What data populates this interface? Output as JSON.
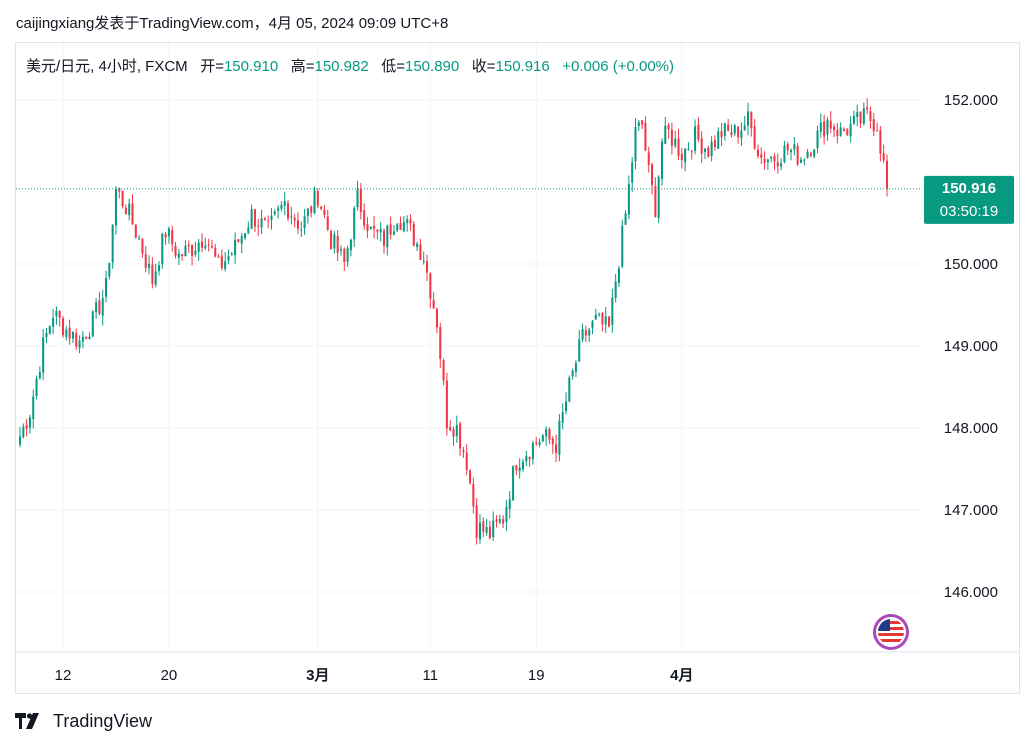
{
  "header": {
    "user": "caijingxiang",
    "published_text": "发表于TradingView.com，",
    "timestamp": "4月 05, 2024 09:09 UTC+8"
  },
  "legend": {
    "symbol": "美元/日元, 4小时, FXCM",
    "open_label": "开=",
    "open_value": "150.910",
    "high_label": "高=",
    "high_value": "150.982",
    "low_label": "低=",
    "low_value": "150.890",
    "close_label": "收=",
    "close_value": "150.916",
    "change": "+0.006 (+0.00%)"
  },
  "price_tag": {
    "price": "150.916",
    "countdown": "03:50:19"
  },
  "footer": {
    "brand": "TradingView"
  },
  "colors": {
    "up": "#089981",
    "down": "#f23645",
    "grid": "#f0f3fa",
    "text": "#131722"
  },
  "icons": {
    "flag": "us-flag-icon",
    "logo": "tradingview-logo-icon"
  },
  "chart_data": {
    "type": "candlestick",
    "symbol": "USD/JPY",
    "timeframe": "4h",
    "y_ticks": [
      "152.000",
      "150.000",
      "149.000",
      "148.000",
      "147.000",
      "146.000"
    ],
    "x_ticks": [
      "12",
      "20",
      "3月",
      "11",
      "19",
      "4月"
    ],
    "ylim": [
      145.3,
      152.45
    ],
    "current_price": 150.916,
    "price_path": [
      [
        0,
        147.9
      ],
      [
        3,
        148.2
      ],
      [
        7,
        149.0
      ],
      [
        10,
        149.4
      ],
      [
        14,
        149.2
      ],
      [
        18,
        149.05
      ],
      [
        22,
        149.3
      ],
      [
        26,
        149.7
      ],
      [
        29,
        150.9
      ],
      [
        32,
        150.7
      ],
      [
        36,
        150.3
      ],
      [
        40,
        149.8
      ],
      [
        44,
        150.4
      ],
      [
        48,
        150.1
      ],
      [
        52,
        150.2
      ],
      [
        56,
        150.35
      ],
      [
        60,
        149.95
      ],
      [
        65,
        150.2
      ],
      [
        70,
        150.6
      ],
      [
        75,
        150.4
      ],
      [
        80,
        150.75
      ],
      [
        85,
        150.45
      ],
      [
        90,
        150.85
      ],
      [
        94,
        150.3
      ],
      [
        98,
        150.0
      ],
      [
        102,
        150.8
      ],
      [
        106,
        150.4
      ],
      [
        110,
        150.3
      ],
      [
        114,
        150.6
      ],
      [
        118,
        150.4
      ],
      [
        122,
        150.1
      ],
      [
        126,
        149.3
      ],
      [
        129,
        148.1
      ],
      [
        132,
        148.0
      ],
      [
        135,
        147.6
      ],
      [
        138,
        146.8
      ],
      [
        142,
        146.7
      ],
      [
        146,
        146.9
      ],
      [
        150,
        147.6
      ],
      [
        154,
        147.75
      ],
      [
        158,
        147.9
      ],
      [
        162,
        147.8
      ],
      [
        166,
        148.5
      ],
      [
        170,
        149.1
      ],
      [
        174,
        149.3
      ],
      [
        178,
        149.2
      ],
      [
        180,
        149.8
      ],
      [
        183,
        150.6
      ],
      [
        186,
        151.6
      ],
      [
        188,
        151.7
      ],
      [
        190,
        151.1
      ],
      [
        192,
        150.7
      ],
      [
        194,
        151.5
      ],
      [
        196,
        151.6
      ],
      [
        200,
        151.35
      ],
      [
        204,
        151.55
      ],
      [
        208,
        151.4
      ],
      [
        212,
        151.6
      ],
      [
        216,
        151.6
      ],
      [
        220,
        151.75
      ],
      [
        224,
        151.3
      ],
      [
        228,
        151.3
      ],
      [
        232,
        151.4
      ],
      [
        236,
        151.3
      ],
      [
        240,
        151.5
      ],
      [
        244,
        151.75
      ],
      [
        248,
        151.6
      ],
      [
        252,
        151.7
      ],
      [
        256,
        151.8
      ],
      [
        259,
        151.7
      ],
      [
        261,
        151.2
      ],
      [
        262,
        150.916
      ]
    ]
  }
}
